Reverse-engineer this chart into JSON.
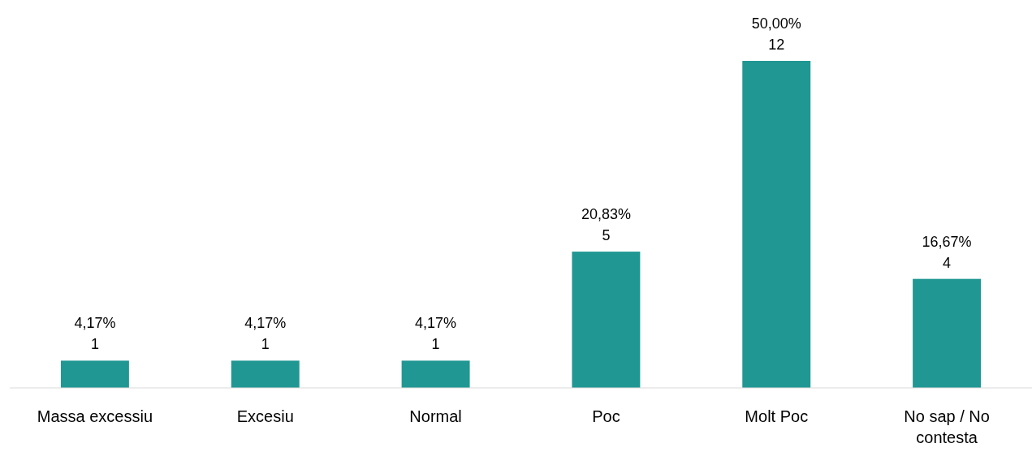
{
  "chart_data": {
    "type": "bar",
    "categories": [
      "Massa excessiu",
      "Excesiu",
      "Normal",
      "Poc",
      "Molt Poc",
      "No sap / No contesta"
    ],
    "values": [
      1,
      1,
      1,
      5,
      12,
      4
    ],
    "value_labels": [
      "4,17%\n1",
      "4,17%\n1",
      "4,17%\n1",
      "20,83%\n5",
      "50,00%\n12",
      "16,67%\n4"
    ],
    "color": "#219793"
  }
}
